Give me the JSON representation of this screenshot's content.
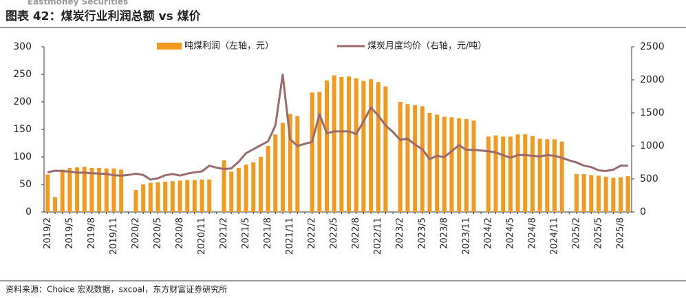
{
  "chart_data": {
    "type": "bar",
    "brand": "Eastmoney Securities",
    "title": "图表 42：煤炭行业利润总额 vs 煤价",
    "source": "资料来源：Choice 宏观数据，sxcoal，东方财富证券研究所",
    "categories": [
      "2019/2",
      null,
      null,
      "2019/5",
      null,
      null,
      "2019/8",
      null,
      null,
      "2019/11",
      null,
      null,
      "2020/2",
      null,
      null,
      "2020/5",
      null,
      null,
      "2020/8",
      null,
      null,
      "2020/11",
      null,
      null,
      "2021/2",
      null,
      null,
      "2021/5",
      null,
      null,
      "2021/8",
      null,
      null,
      "2021/11",
      null,
      null,
      "2022/2",
      null,
      null,
      "2022/5",
      null,
      null,
      "2022/8",
      null,
      null,
      "2022/11",
      null,
      null,
      "2023/2",
      null,
      null,
      "2023/5",
      null,
      null,
      "2023/8",
      null,
      null,
      "2023/11",
      null,
      null,
      "2024/2",
      null,
      null,
      "2024/5",
      null,
      null,
      "2024/8",
      null,
      null,
      "2024/11",
      null,
      null,
      "2025/2",
      null,
      null,
      "2025/5",
      null,
      null,
      "2025/8",
      null
    ],
    "series": [
      {
        "name": "吨煤利润（左轴，元）",
        "type": "bar",
        "color": "#F39A1E",
        "values": [
          68,
          27,
          77,
          80,
          81,
          82,
          80,
          80,
          79,
          79,
          77,
          null,
          40,
          50,
          53,
          54,
          55,
          56,
          57,
          58,
          58,
          59,
          59,
          null,
          94,
          73,
          80,
          86,
          90,
          100,
          120,
          141,
          162,
          178,
          174,
          null,
          217,
          218,
          239,
          248,
          245,
          246,
          243,
          238,
          241,
          236,
          228,
          null,
          200,
          196,
          194,
          192,
          180,
          177,
          173,
          172,
          170,
          169,
          166,
          null,
          137,
          139,
          137,
          137,
          141,
          141,
          138,
          133,
          132,
          132,
          128,
          null,
          69,
          69,
          67,
          66,
          64,
          62,
          63,
          65
        ]
      },
      {
        "name": "煤炭月度均价（右轴，元/吨）",
        "type": "line",
        "axis": "y2",
        "color": "#9A6A6C",
        "values": [
          600,
          625,
          620,
          610,
          595,
          595,
          585,
          580,
          575,
          555,
          550,
          560,
          580,
          560,
          490,
          510,
          555,
          575,
          550,
          580,
          600,
          615,
          700,
          670,
          650,
          660,
          760,
          890,
          950,
          1010,
          1070,
          1310,
          2080,
          1100,
          1000,
          1030,
          1060,
          1480,
          1190,
          1220,
          1220,
          1220,
          1180,
          1370,
          1580,
          1460,
          1310,
          1210,
          1090,
          1110,
          1020,
          950,
          800,
          850,
          830,
          920,
          1010,
          940,
          940,
          930,
          920,
          900,
          860,
          820,
          860,
          860,
          850,
          840,
          860,
          850,
          820,
          780,
          750,
          700,
          680,
          630,
          620,
          640,
          700,
          700
        ]
      }
    ],
    "ylim": [
      0,
      300
    ],
    "yticks": [
      0,
      50,
      100,
      150,
      200,
      250,
      300
    ],
    "y2lim": [
      0,
      2500
    ],
    "y2ticks": [
      0,
      500,
      1000,
      1500,
      2000,
      2500
    ]
  }
}
